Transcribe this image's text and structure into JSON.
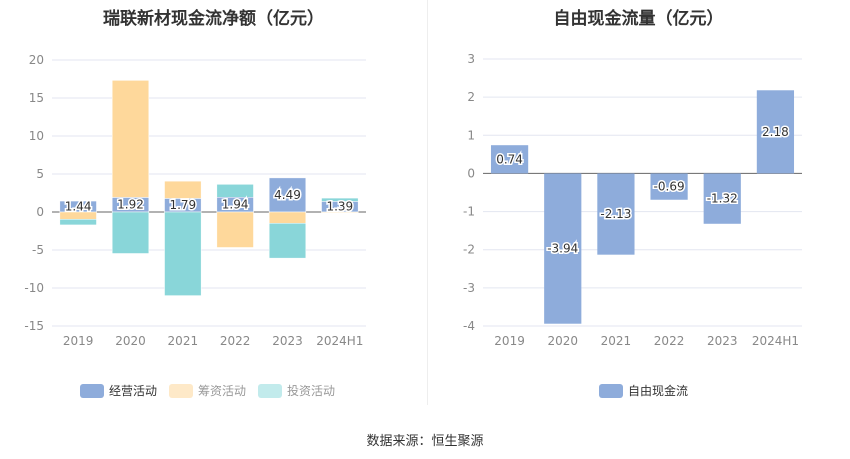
{
  "chart_data": [
    {
      "type": "bar",
      "stacked": true,
      "title": "瑞联新材现金流净额（亿元）",
      "categories": [
        "2019",
        "2020",
        "2021",
        "2022",
        "2023",
        "2024H1"
      ],
      "ylim": [
        -15,
        20
      ],
      "yticks": [
        20,
        15,
        10,
        5,
        0,
        -5,
        -10,
        -15
      ],
      "grid": true,
      "legend_position": "bottom",
      "series": [
        {
          "name": "经营活动",
          "color": "#8eacdb",
          "legend_color": "#8eacdb",
          "values": [
            1.44,
            1.92,
            1.79,
            1.94,
            4.49,
            1.39
          ],
          "labels": [
            "1.44",
            "1.92",
            "1.79",
            "1.94",
            "4.49",
            "1.39"
          ]
        },
        {
          "name": "筹资活动",
          "color": "#fed89b",
          "legend_color": "#fee9c8",
          "values": [
            -0.96,
            15.4,
            2.27,
            -4.67,
            -1.48,
            -0.1
          ]
        },
        {
          "name": "投资活动",
          "color": "#89d6d9",
          "legend_color": "#c2ebec",
          "values": [
            -0.74,
            -5.46,
            -11.0,
            1.7,
            -4.59,
            0.44
          ]
        }
      ]
    },
    {
      "type": "bar",
      "title": "自由现金流量（亿元）",
      "categories": [
        "2019",
        "2020",
        "2021",
        "2022",
        "2023",
        "2024H1"
      ],
      "ylim": [
        -4,
        3
      ],
      "yticks": [
        3,
        2,
        1,
        0,
        -1,
        -2,
        -3,
        -4
      ],
      "grid": true,
      "legend_position": "bottom",
      "series": [
        {
          "name": "自由现金流",
          "color": "#8eacdb",
          "values": [
            0.74,
            -3.94,
            -2.13,
            -0.69,
            -1.32,
            2.18
          ],
          "labels": [
            "0.74",
            "-3.94",
            "-2.13",
            "-0.69",
            "-1.32",
            "2.18"
          ]
        }
      ]
    }
  ],
  "source": "数据来源：恒生聚源"
}
